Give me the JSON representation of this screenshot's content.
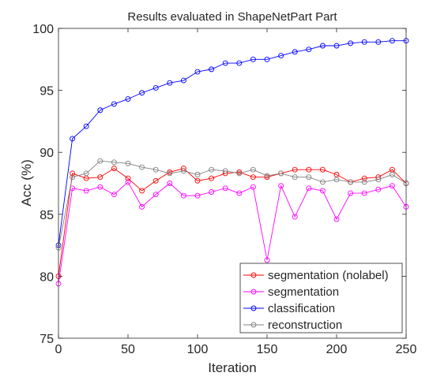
{
  "chart_data": {
    "type": "line",
    "title": "Results evaluated in ShapeNetPart Part",
    "xlabel": "Iteration",
    "ylabel": "Acc (%)",
    "xlim": [
      0,
      250
    ],
    "ylim": [
      75,
      100
    ],
    "xticks": [
      0,
      50,
      100,
      150,
      200,
      250
    ],
    "yticks": [
      75,
      80,
      85,
      90,
      95,
      100
    ],
    "xtick_labels": [
      "0",
      "50",
      "100",
      "150",
      "200",
      "250"
    ],
    "ytick_labels": [
      "75",
      "80",
      "85",
      "90",
      "95",
      "100"
    ],
    "grid": false,
    "legend_position": "bottom-right",
    "x": [
      0,
      10,
      20,
      30,
      40,
      50,
      60,
      70,
      80,
      90,
      100,
      110,
      120,
      130,
      140,
      150,
      160,
      170,
      180,
      190,
      200,
      210,
      220,
      230,
      240,
      250
    ],
    "series": [
      {
        "name": "segmentation (nolabel)",
        "color": "#ff0000",
        "values": [
          80.0,
          88.3,
          87.9,
          88.0,
          88.7,
          87.9,
          86.9,
          87.7,
          88.4,
          88.7,
          87.7,
          87.9,
          88.3,
          88.4,
          88.0,
          88.0,
          88.3,
          88.6,
          88.6,
          88.6,
          88.2,
          87.6,
          87.9,
          88.0,
          88.6,
          87.5
        ]
      },
      {
        "name": "segmentation",
        "color": "#ff00ff",
        "values": [
          79.4,
          87.1,
          86.9,
          87.2,
          86.6,
          87.6,
          85.6,
          86.6,
          87.5,
          86.5,
          86.5,
          86.8,
          87.1,
          86.7,
          87.2,
          81.3,
          87.3,
          84.8,
          87.1,
          86.9,
          84.6,
          86.7,
          86.7,
          87.0,
          87.3,
          85.6
        ]
      },
      {
        "name": "classification",
        "color": "#0000ff",
        "values": [
          82.5,
          91.1,
          92.1,
          93.4,
          93.9,
          94.3,
          94.8,
          95.2,
          95.6,
          95.8,
          96.5,
          96.7,
          97.2,
          97.2,
          97.5,
          97.5,
          97.8,
          98.1,
          98.3,
          98.6,
          98.6,
          98.8,
          98.9,
          98.9,
          99.0,
          99.0
        ]
      },
      {
        "name": "reconstruction",
        "color": "#808080",
        "values": [
          82.3,
          88.0,
          88.3,
          89.3,
          89.2,
          89.1,
          88.8,
          88.6,
          88.3,
          88.5,
          88.2,
          88.6,
          88.5,
          88.3,
          88.6,
          88.1,
          88.3,
          88.0,
          88.0,
          87.6,
          87.8,
          87.6,
          87.6,
          87.8,
          88.2,
          87.5
        ]
      }
    ]
  }
}
